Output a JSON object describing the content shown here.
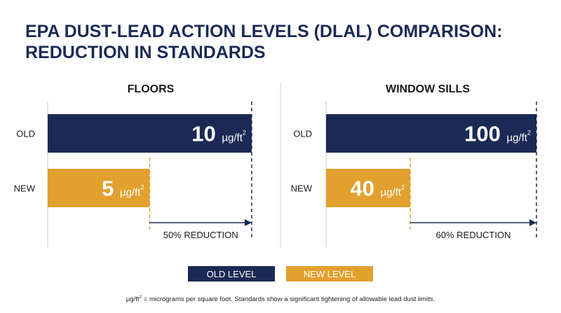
{
  "title_line1": "EPA DUST-LEAD ACTION LEVELS (DLAL) COMPARISON:",
  "title_line2": "REDUCTION IN STANDARDS",
  "legend": {
    "old": "OLD LEVEL",
    "new": "NEW LEVEL",
    "colors": {
      "old": "#1b2a55",
      "new": "#e2a02e"
    }
  },
  "footnote": {
    "unit": "µg/ft",
    "sup": "2",
    "text": " = micrograms per square foot. Standards show a significant tightening of allowable lead dust limits."
  },
  "chart_data": [
    {
      "type": "bar",
      "orientation": "horizontal",
      "title": "FLOORS",
      "categories": [
        "OLD",
        "NEW"
      ],
      "values": [
        10,
        5
      ],
      "value_labels": [
        "10",
        "5"
      ],
      "unit": "µg/ft",
      "unit_sup": "2",
      "xlim": [
        0,
        11
      ],
      "annotation": "50% REDUCTION",
      "colors": [
        "#1b2a55",
        "#e2a02e"
      ]
    },
    {
      "type": "bar",
      "orientation": "horizontal",
      "title": "WINDOW SILLS",
      "categories": [
        "OLD",
        "NEW"
      ],
      "values": [
        100,
        40
      ],
      "value_labels": [
        "100",
        "40"
      ],
      "unit": "µg/ft",
      "unit_sup": "2",
      "xlim": [
        0,
        110
      ],
      "annotation": "60% REDUCTION",
      "colors": [
        "#1b2a55",
        "#e2a02e"
      ]
    }
  ]
}
